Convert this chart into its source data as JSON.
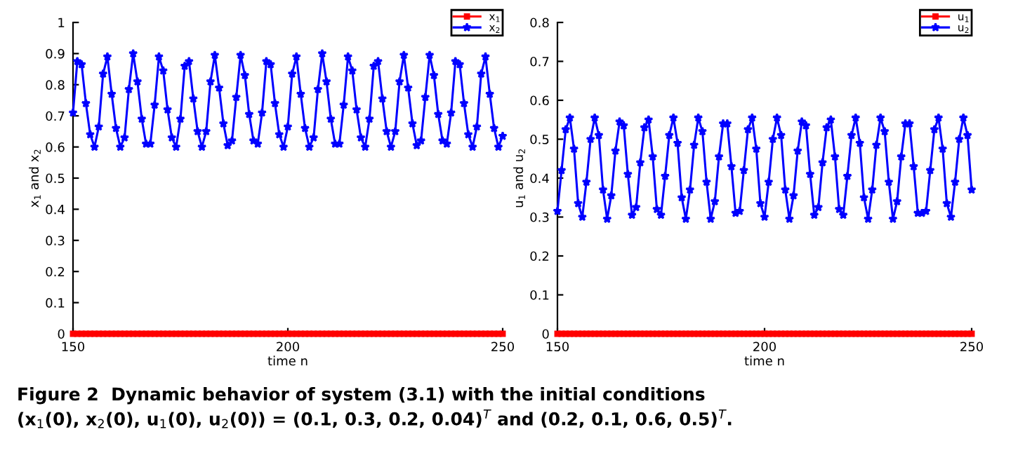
{
  "chart_data": [
    {
      "type": "line",
      "xlabel": "time n",
      "ylabel": "x$_{1}$ and x$_{2}$",
      "xlim": [
        150,
        250
      ],
      "xticks": [
        150,
        200,
        250
      ],
      "ylim": [
        0,
        1
      ],
      "yticks": [
        0,
        0.1,
        0.2,
        0.3,
        0.4,
        0.5,
        0.6,
        0.7,
        0.8,
        0.9,
        1
      ],
      "grid": false,
      "legend": "top right",
      "line_style": "solid",
      "x": [
        150,
        151,
        152,
        153,
        154,
        155,
        156,
        157,
        158,
        159,
        160,
        161,
        162,
        163,
        164,
        165,
        166,
        167,
        168,
        169,
        170,
        171,
        172,
        173,
        174,
        175,
        176,
        177,
        178,
        179,
        180,
        181,
        182,
        183,
        184,
        185,
        186,
        187,
        188,
        189,
        190,
        191,
        192,
        193,
        194,
        195,
        196,
        197,
        198,
        199,
        200,
        201,
        202,
        203,
        204,
        205,
        206,
        207,
        208,
        209,
        210,
        211,
        212,
        213,
        214,
        215,
        216,
        217,
        218,
        219,
        220,
        221,
        222,
        223,
        224,
        225,
        226,
        227,
        228,
        229,
        230,
        231,
        232,
        233,
        234,
        235,
        236,
        237,
        238,
        239,
        240,
        241,
        242,
        243,
        244,
        245,
        246,
        247,
        248,
        249,
        250
      ],
      "series": [
        {
          "name": "x$_{1}$",
          "color": "#ff0000",
          "marker": "square",
          "values": [
            0,
            0,
            0,
            0,
            0,
            0,
            0,
            0,
            0,
            0,
            0,
            0,
            0,
            0,
            0,
            0,
            0,
            0,
            0,
            0,
            0,
            0,
            0,
            0,
            0,
            0,
            0,
            0,
            0,
            0,
            0,
            0,
            0,
            0,
            0,
            0,
            0,
            0,
            0,
            0,
            0,
            0,
            0,
            0,
            0,
            0,
            0,
            0,
            0,
            0,
            0,
            0,
            0,
            0,
            0,
            0,
            0,
            0,
            0,
            0,
            0,
            0,
            0,
            0,
            0,
            0,
            0,
            0,
            0,
            0,
            0,
            0,
            0,
            0,
            0,
            0,
            0,
            0,
            0,
            0,
            0,
            0,
            0,
            0,
            0,
            0,
            0,
            0,
            0,
            0,
            0,
            0,
            0,
            0,
            0,
            0,
            0,
            0,
            0,
            0,
            0
          ]
        },
        {
          "name": "x$_{2}$",
          "color": "#0000ff",
          "marker": "star",
          "values": [
            0.71,
            0.875,
            0.865,
            0.74,
            0.64,
            0.6,
            0.665,
            0.835,
            0.89,
            0.77,
            0.66,
            0.6,
            0.63,
            0.785,
            0.9,
            0.81,
            0.69,
            0.61,
            0.61,
            0.735,
            0.89,
            0.845,
            0.72,
            0.63,
            0.6,
            0.69,
            0.86,
            0.875,
            0.755,
            0.65,
            0.6,
            0.65,
            0.81,
            0.895,
            0.79,
            0.675,
            0.605,
            0.62,
            0.76,
            0.895,
            0.83,
            0.705,
            0.62,
            0.61,
            0.71,
            0.875,
            0.865,
            0.74,
            0.64,
            0.6,
            0.665,
            0.835,
            0.89,
            0.77,
            0.66,
            0.6,
            0.63,
            0.785,
            0.9,
            0.81,
            0.69,
            0.61,
            0.61,
            0.735,
            0.89,
            0.845,
            0.72,
            0.63,
            0.6,
            0.69,
            0.86,
            0.875,
            0.755,
            0.65,
            0.6,
            0.65,
            0.81,
            0.895,
            0.79,
            0.675,
            0.605,
            0.62,
            0.76,
            0.895,
            0.83,
            0.705,
            0.62,
            0.61,
            0.71,
            0.875,
            0.865,
            0.74,
            0.64,
            0.6,
            0.665,
            0.835,
            0.89,
            0.77,
            0.66,
            0.6,
            0.635
          ]
        }
      ],
      "annotations": [
        "Figure 2  Dynamic behavior of system (3.1) with the initial conditions\n(x$_{1}$(0), x$_{2}$(0), u$_{1}$(0), u$_{2}$(0)) = (0.1, 0.3, 0.2, 0.04)$^{T}$ and (0.2, 0.1, 0.6, 0.5)$^{T}$."
      ]
    },
    {
      "type": "line",
      "xlabel": "time n",
      "ylabel": "u$_{1}$ and u$_{2}$",
      "xlim": [
        150,
        250
      ],
      "xticks": [
        150,
        200,
        250
      ],
      "ylim": [
        0,
        0.8
      ],
      "yticks": [
        0,
        0.1,
        0.2,
        0.3,
        0.4,
        0.5,
        0.6,
        0.7,
        0.8
      ],
      "grid": false,
      "legend": "top right",
      "line_style": "solid",
      "x": [
        150,
        151,
        152,
        153,
        154,
        155,
        156,
        157,
        158,
        159,
        160,
        161,
        162,
        163,
        164,
        165,
        166,
        167,
        168,
        169,
        170,
        171,
        172,
        173,
        174,
        175,
        176,
        177,
        178,
        179,
        180,
        181,
        182,
        183,
        184,
        185,
        186,
        187,
        188,
        189,
        190,
        191,
        192,
        193,
        194,
        195,
        196,
        197,
        198,
        199,
        200,
        201,
        202,
        203,
        204,
        205,
        206,
        207,
        208,
        209,
        210,
        211,
        212,
        213,
        214,
        215,
        216,
        217,
        218,
        219,
        220,
        221,
        222,
        223,
        224,
        225,
        226,
        227,
        228,
        229,
        230,
        231,
        232,
        233,
        234,
        235,
        236,
        237,
        238,
        239,
        240,
        241,
        242,
        243,
        244,
        245,
        246,
        247,
        248,
        249,
        250
      ],
      "series": [
        {
          "name": "u$_{1}$",
          "color": "#ff0000",
          "marker": "square",
          "values": [
            0,
            0,
            0,
            0,
            0,
            0,
            0,
            0,
            0,
            0,
            0,
            0,
            0,
            0,
            0,
            0,
            0,
            0,
            0,
            0,
            0,
            0,
            0,
            0,
            0,
            0,
            0,
            0,
            0,
            0,
            0,
            0,
            0,
            0,
            0,
            0,
            0,
            0,
            0,
            0,
            0,
            0,
            0,
            0,
            0,
            0,
            0,
            0,
            0,
            0,
            0,
            0,
            0,
            0,
            0,
            0,
            0,
            0,
            0,
            0,
            0,
            0,
            0,
            0,
            0,
            0,
            0,
            0,
            0,
            0,
            0,
            0,
            0,
            0,
            0,
            0,
            0,
            0,
            0,
            0,
            0,
            0,
            0,
            0,
            0,
            0,
            0,
            0,
            0,
            0,
            0,
            0,
            0,
            0,
            0,
            0,
            0,
            0,
            0,
            0,
            0
          ]
        },
        {
          "name": "u$_{2}$",
          "color": "#0000ff",
          "marker": "star",
          "values": [
            0.315,
            0.42,
            0.525,
            0.555,
            0.475,
            0.335,
            0.3,
            0.39,
            0.5,
            0.555,
            0.51,
            0.37,
            0.295,
            0.355,
            0.47,
            0.545,
            0.535,
            0.41,
            0.305,
            0.325,
            0.44,
            0.53,
            0.55,
            0.455,
            0.32,
            0.305,
            0.405,
            0.51,
            0.555,
            0.49,
            0.35,
            0.295,
            0.37,
            0.485,
            0.555,
            0.52,
            0.39,
            0.295,
            0.34,
            0.455,
            0.54,
            0.54,
            0.43,
            0.31,
            0.315,
            0.42,
            0.525,
            0.555,
            0.475,
            0.335,
            0.3,
            0.39,
            0.5,
            0.555,
            0.51,
            0.37,
            0.295,
            0.355,
            0.47,
            0.545,
            0.535,
            0.41,
            0.305,
            0.325,
            0.44,
            0.53,
            0.55,
            0.455,
            0.32,
            0.305,
            0.405,
            0.51,
            0.555,
            0.49,
            0.35,
            0.295,
            0.37,
            0.485,
            0.555,
            0.52,
            0.39,
            0.295,
            0.34,
            0.455,
            0.54,
            0.54,
            0.43,
            0.31,
            0.31,
            0.315,
            0.42,
            0.525,
            0.555,
            0.475,
            0.335,
            0.3,
            0.39,
            0.5,
            0.555,
            0.51,
            0.37
          ]
        }
      ]
    }
  ]
}
